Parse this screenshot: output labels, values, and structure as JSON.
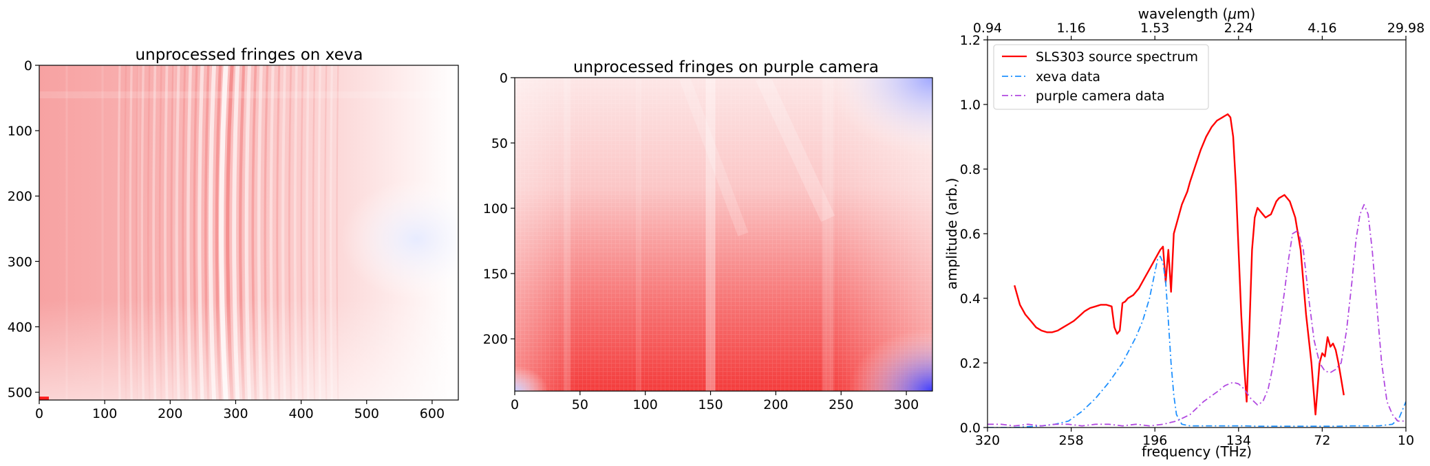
{
  "colors": {
    "red": "#ff0000",
    "blue": "#1e90ff",
    "purple": "#b048e0",
    "frame": "#000000",
    "colormap": "bwr"
  },
  "chart_data": [
    {
      "type": "heatmap",
      "title": "unprocessed fringes on xeva",
      "colormap": "bwr",
      "xlim": [
        0,
        640
      ],
      "ylim": [
        512,
        0
      ],
      "xticks": [
        0,
        100,
        200,
        300,
        400,
        500,
        600
      ],
      "yticks": [
        0,
        100,
        200,
        300,
        400,
        500
      ],
      "fringe_center_x": 285
    },
    {
      "type": "heatmap",
      "title": "unprocessed fringes on purple camera",
      "colormap": "bwr",
      "xlim": [
        0,
        320
      ],
      "ylim": [
        240,
        0
      ],
      "xticks": [
        0,
        50,
        100,
        150,
        200,
        250,
        300
      ],
      "yticks": [
        0,
        50,
        100,
        150,
        200
      ]
    },
    {
      "type": "line",
      "xlabel": "frequency (THz)",
      "ylabel": "amplitude (arb.)",
      "top_xlabel": "wavelength (μm)",
      "xlim": [
        320,
        10
      ],
      "ylim": [
        0,
        1.2
      ],
      "xticks": [
        320,
        258,
        196,
        134,
        72,
        10
      ],
      "yticks": [
        0.0,
        0.2,
        0.4,
        0.6,
        0.8,
        1.0,
        1.2
      ],
      "ytick_labels": [
        "0.0",
        "0.2",
        "0.4",
        "0.6",
        "0.8",
        "1.0",
        "1.2"
      ],
      "top_xticks": [
        320,
        258,
        196,
        134,
        72,
        10
      ],
      "top_xtick_labels": [
        "0.94",
        "1.16",
        "1.53",
        "2.24",
        "4.16",
        "29.98"
      ],
      "legend_position": "upper-left",
      "series": [
        {
          "name": "SLS303 source spectrum",
          "style": "solid",
          "color": "#ff0000",
          "x": [
            300,
            296,
            292,
            288,
            284,
            280,
            276,
            272,
            268,
            264,
            260,
            256,
            252,
            248,
            244,
            240,
            236,
            232,
            228,
            226,
            224,
            222,
            220,
            218,
            216,
            212,
            208,
            204,
            200,
            196,
            192,
            190,
            188,
            186,
            184,
            182,
            180,
            178,
            176,
            174,
            172,
            170,
            166,
            162,
            158,
            154,
            150,
            146,
            142,
            140,
            138,
            136,
            134,
            132,
            130,
            128,
            126,
            124,
            122,
            120,
            118,
            116,
            114,
            112,
            110,
            108,
            106,
            104,
            100,
            96,
            92,
            88,
            84,
            80,
            77,
            74,
            72,
            70,
            68,
            66,
            64,
            62,
            60,
            58,
            56
          ],
          "y": [
            0.44,
            0.38,
            0.35,
            0.33,
            0.31,
            0.3,
            0.295,
            0.295,
            0.3,
            0.31,
            0.32,
            0.33,
            0.345,
            0.36,
            0.37,
            0.375,
            0.38,
            0.38,
            0.375,
            0.31,
            0.29,
            0.3,
            0.385,
            0.39,
            0.4,
            0.41,
            0.43,
            0.46,
            0.49,
            0.52,
            0.55,
            0.56,
            0.45,
            0.55,
            0.42,
            0.6,
            0.63,
            0.66,
            0.69,
            0.71,
            0.73,
            0.76,
            0.81,
            0.86,
            0.9,
            0.93,
            0.95,
            0.96,
            0.97,
            0.96,
            0.9,
            0.75,
            0.55,
            0.35,
            0.2,
            0.08,
            0.3,
            0.55,
            0.65,
            0.68,
            0.67,
            0.66,
            0.65,
            0.655,
            0.66,
            0.68,
            0.7,
            0.71,
            0.72,
            0.7,
            0.65,
            0.55,
            0.35,
            0.2,
            0.04,
            0.2,
            0.23,
            0.22,
            0.28,
            0.25,
            0.26,
            0.24,
            0.2,
            0.15,
            0.1
          ]
        },
        {
          "name": "xeva data",
          "style": "dashdot",
          "color": "#1e90ff",
          "x": [
            320,
            300,
            280,
            270,
            260,
            250,
            240,
            230,
            220,
            210,
            205,
            200,
            196,
            194,
            192,
            190,
            188,
            186,
            184,
            182,
            180,
            176,
            170,
            160,
            150,
            140,
            130,
            120,
            110,
            100,
            90,
            80,
            70,
            60,
            50,
            40,
            30,
            20,
            15,
            12,
            10
          ],
          "y": [
            0.0,
            0.0,
            0.005,
            0.01,
            0.02,
            0.05,
            0.09,
            0.14,
            0.2,
            0.28,
            0.33,
            0.4,
            0.48,
            0.52,
            0.53,
            0.51,
            0.45,
            0.33,
            0.2,
            0.1,
            0.04,
            0.01,
            0.005,
            0.005,
            0.005,
            0.005,
            0.005,
            0.004,
            0.004,
            0.004,
            0.004,
            0.004,
            0.004,
            0.004,
            0.005,
            0.005,
            0.005,
            0.01,
            0.03,
            0.06,
            0.08
          ]
        },
        {
          "name": "purple camera data",
          "style": "dashdot",
          "color": "#b048e0",
          "x": [
            320,
            310,
            300,
            290,
            280,
            270,
            260,
            250,
            240,
            230,
            220,
            210,
            200,
            190,
            180,
            170,
            160,
            150,
            144,
            138,
            134,
            130,
            125,
            120,
            116,
            112,
            108,
            104,
            100,
            97,
            94,
            90,
            86,
            82,
            78,
            74,
            70,
            66,
            62,
            58,
            54,
            50,
            47,
            44,
            41,
            38,
            35,
            32,
            28,
            24,
            20,
            16,
            12,
            10
          ],
          "y": [
            0.01,
            0.01,
            0.005,
            0.01,
            0.005,
            0.01,
            0.01,
            0.005,
            0.01,
            0.01,
            0.005,
            0.01,
            0.005,
            0.01,
            0.02,
            0.04,
            0.08,
            0.11,
            0.13,
            0.14,
            0.135,
            0.12,
            0.09,
            0.07,
            0.08,
            0.12,
            0.2,
            0.3,
            0.42,
            0.52,
            0.6,
            0.61,
            0.55,
            0.4,
            0.27,
            0.2,
            0.175,
            0.17,
            0.18,
            0.2,
            0.3,
            0.45,
            0.58,
            0.66,
            0.69,
            0.66,
            0.55,
            0.4,
            0.2,
            0.08,
            0.04,
            0.02,
            0.02,
            0.02
          ]
        }
      ]
    }
  ]
}
